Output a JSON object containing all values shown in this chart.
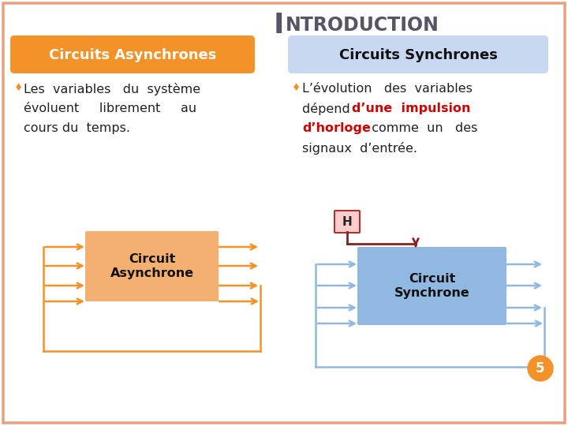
{
  "title_big": "I",
  "title_rest": "NTRODUCTION",
  "bg_color": "#FFFFFF",
  "border_color": "#E8A080",
  "async_header": "Circuits Asynchrones",
  "sync_header": "Circuits Synchrones",
  "async_header_bg": "#F4922A",
  "async_header_text": "#FFFFFF",
  "sync_header_bg": "#C8D8F0",
  "sync_header_text": "#111111",
  "orange": "#F4922A",
  "orange_light": "#F4B070",
  "blue": "#90B8E0",
  "dark_red": "#8B2020",
  "red": "#CC0000",
  "text_color": "#222222",
  "title_color": "#555566",
  "page_num": "5",
  "page_num_bg": "#F4922A"
}
